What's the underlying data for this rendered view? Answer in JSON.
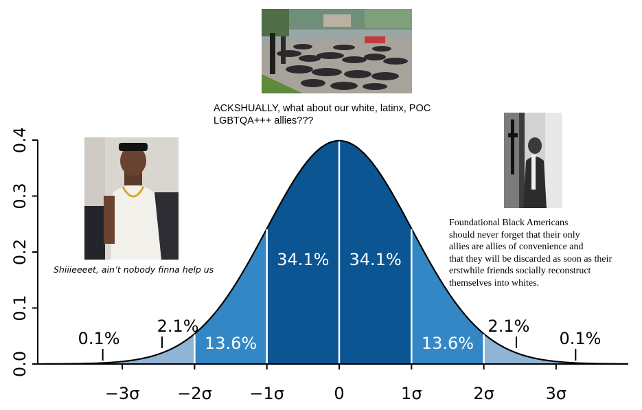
{
  "chart_data": {
    "type": "area",
    "distribution": "standard normal",
    "title": "",
    "xlabel": "",
    "ylabel": "",
    "xlim": [
      -4,
      4
    ],
    "ylim": [
      0,
      0.4
    ],
    "xticks": [
      {
        "value": -3,
        "label": "−3σ"
      },
      {
        "value": -2,
        "label": "−2σ"
      },
      {
        "value": -1,
        "label": "−1σ"
      },
      {
        "value": 0,
        "label": "0"
      },
      {
        "value": 1,
        "label": "1σ"
      },
      {
        "value": 2,
        "label": "2σ"
      },
      {
        "value": 3,
        "label": "3σ"
      }
    ],
    "yticks": [
      {
        "value": 0.0,
        "label": "0.0"
      },
      {
        "value": 0.1,
        "label": "0.1"
      },
      {
        "value": 0.2,
        "label": "0.2"
      },
      {
        "value": 0.3,
        "label": "0.3"
      },
      {
        "value": 0.4,
        "label": "0.4"
      }
    ],
    "bands": [
      {
        "from": -3,
        "to": -2,
        "label": "2.1%",
        "color": "#8fb4d6"
      },
      {
        "from": -2,
        "to": -1,
        "label": "13.6%",
        "color": "#3487c5"
      },
      {
        "from": -1,
        "to": 0,
        "label": "34.1%",
        "color": "#0a5592"
      },
      {
        "from": 0,
        "to": 1,
        "label": "34.1%",
        "color": "#0a5592"
      },
      {
        "from": 1,
        "to": 2,
        "label": "13.6%",
        "color": "#3487c5"
      },
      {
        "from": 2,
        "to": 3,
        "label": "2.1%",
        "color": "#8fb4d6"
      }
    ],
    "tail_labels": [
      {
        "side": "left",
        "label": "0.1%"
      },
      {
        "side": "right",
        "label": "0.1%"
      }
    ],
    "outer_tail_color": "#c2d7e9",
    "grid": false,
    "legend": "none"
  },
  "captions": {
    "top": "ACKSHUALLY, what about our white, latinx, POC LGBTQA+++ allies???",
    "left": "Shiiieeeet, ain’t nobody finna help us",
    "right_lines": [
      "Foundational Black Americans",
      "should never forget that their only",
      "allies are allies of convenience and",
      "that they will be discarded as soon as their",
      "erstwhile friends socially reconstruct",
      "themselves into whites."
    ]
  }
}
